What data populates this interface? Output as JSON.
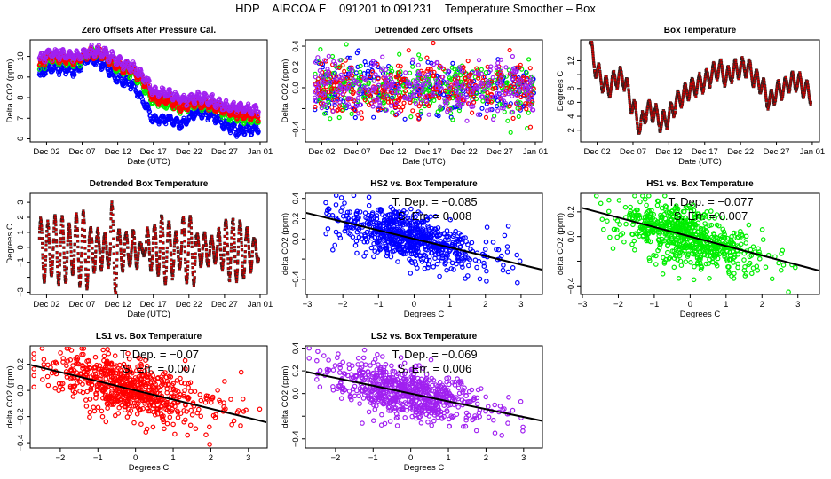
{
  "title": "HDP    AIRCOA E    091201 to 091231    Temperature Smoother – Box",
  "colors": {
    "HS2": "#0000ff",
    "HS1": "#00ee00",
    "LS1": "#ff0000",
    "LS2": "#a020f0",
    "box_temp_fill": "#cc0000",
    "box_temp_edge": "#222222",
    "fit_line": "#000000"
  },
  "chart_data": [
    {
      "id": "zero-offsets",
      "type": "scatter",
      "title": "Zero Offsets After Pressure Cal.",
      "xlabel": "Date (UTC)",
      "ylabel": "Delta CO2 (ppm)",
      "x_tick_labels": [
        "Dec 02",
        "Dec 07",
        "Dec 12",
        "Dec 17",
        "Dec 22",
        "Dec 27",
        "Jan 01"
      ],
      "x_tick_days": [
        1,
        6,
        11,
        16,
        21,
        26,
        31
      ],
      "xlim_days": [
        -1.3,
        32.0
      ],
      "y_ticks": [
        6,
        7,
        8,
        9,
        10
      ],
      "ylim": [
        5.85,
        10.8
      ],
      "series": [
        {
          "name": "HS2",
          "anchors_day": [
            0,
            1.5,
            3,
            5,
            7,
            9,
            11,
            13,
            15,
            16,
            18,
            20,
            22,
            24,
            26,
            28,
            30
          ],
          "values": [
            9.1,
            9.5,
            9.4,
            9.3,
            10.0,
            9.6,
            8.9,
            8.7,
            7.6,
            6.9,
            7.0,
            6.7,
            7.3,
            7.2,
            6.7,
            6.4,
            6.5
          ]
        },
        {
          "name": "HS1",
          "anchors_day": [
            0,
            1.5,
            3,
            5,
            7,
            9,
            11,
            13,
            15,
            16,
            18,
            20,
            22,
            24,
            26,
            28,
            30
          ],
          "values": [
            9.5,
            9.9,
            9.8,
            9.7,
            10.2,
            10.1,
            9.4,
            9.3,
            8.4,
            7.8,
            7.7,
            7.5,
            7.7,
            7.6,
            7.3,
            7.0,
            7.0
          ]
        },
        {
          "name": "LS1",
          "anchors_day": [
            0,
            1.5,
            3,
            5,
            7,
            9,
            11,
            13,
            15,
            16,
            18,
            20,
            22,
            24,
            26,
            28,
            30
          ],
          "values": [
            9.6,
            10.0,
            9.9,
            9.8,
            10.2,
            10.1,
            9.5,
            9.4,
            8.6,
            8.0,
            7.9,
            7.5,
            7.8,
            7.6,
            7.4,
            7.2,
            7.1
          ]
        },
        {
          "name": "LS2",
          "anchors_day": [
            0,
            1.5,
            3,
            5,
            7,
            9,
            11,
            13,
            15,
            16,
            18,
            20,
            22,
            24,
            26,
            28,
            30
          ],
          "values": [
            9.9,
            10.2,
            10.1,
            10.0,
            10.2,
            10.2,
            9.8,
            9.5,
            8.9,
            8.3,
            8.2,
            7.9,
            8.0,
            7.9,
            7.6,
            7.5,
            7.4
          ]
        }
      ]
    },
    {
      "id": "detrended-zero-offsets",
      "type": "scatter",
      "title": "Detrended Zero Offsets",
      "xlabel": "Date (UTC)",
      "ylabel": "Delta CO2 (ppm)",
      "x_tick_labels": [
        "Dec 02",
        "Dec 07",
        "Dec 12",
        "Dec 17",
        "Dec 22",
        "Dec 27",
        "Jan 01"
      ],
      "x_tick_days": [
        1,
        6,
        11,
        16,
        21,
        26,
        31
      ],
      "xlim_days": [
        -1.3,
        32.0
      ],
      "y_ticks": [
        -0.4,
        -0.2,
        0.0,
        0.2,
        0.4
      ],
      "y_tick_labels": [
        "−0.4",
        "",
        "0.0",
        "0.2",
        "0.4"
      ],
      "ylim": [
        -0.52,
        0.46
      ],
      "series_names": [
        "HS2",
        "HS1",
        "LS1",
        "LS2"
      ],
      "spread_sd": 0.13,
      "points_per_series": 300
    },
    {
      "id": "box-temperature",
      "type": "line",
      "title": "Box Temperature",
      "xlabel": "Date (UTC)",
      "ylabel": "Degrees C",
      "x_tick_labels": [
        "Dec 02",
        "Dec 07",
        "Dec 12",
        "Dec 17",
        "Dec 22",
        "Dec 27",
        "Jan 01"
      ],
      "x_tick_days": [
        1,
        6,
        11,
        16,
        21,
        26,
        31
      ],
      "xlim_days": [
        -1.3,
        32.0
      ],
      "y_ticks": [
        2,
        4,
        6,
        8,
        10,
        12
      ],
      "y_tick_labels": [
        "2",
        "4",
        "6",
        "8",
        "",
        "12"
      ],
      "ylim": [
        0.3,
        15.0
      ],
      "anchors_day": [
        0,
        0.5,
        1,
        1.5,
        2,
        2.5,
        3,
        3.5,
        4,
        4.5,
        5,
        5.5,
        6,
        6.5,
        7,
        7.5,
        8,
        9,
        10,
        11,
        12,
        13,
        14,
        15,
        16,
        17,
        18,
        19,
        20,
        21,
        22,
        23,
        24,
        25,
        26,
        27,
        28,
        29,
        30,
        30.8
      ],
      "values": [
        14.5,
        12.0,
        10.5,
        9.5,
        8.5,
        8.0,
        8.5,
        9.5,
        9.5,
        9.5,
        9.0,
        6.5,
        5.5,
        4.0,
        2.0,
        4.0,
        5.0,
        4.5,
        3.0,
        4.0,
        6.0,
        7.0,
        8.0,
        8.5,
        9.0,
        10.0,
        11.0,
        9.5,
        10.5,
        11.0,
        11.0,
        9.5,
        8.5,
        6.0,
        7.5,
        8.0,
        9.0,
        9.0,
        8.0,
        7.0
      ],
      "diurnal_amplitude": 1.6
    },
    {
      "id": "detrended-box-temperature",
      "type": "line",
      "title": "Detrended Box Temperature",
      "xlabel": "Date (UTC)",
      "ylabel": "Degrees C",
      "x_tick_labels": [
        "Dec 02",
        "Dec 07",
        "Dec 12",
        "Dec 17",
        "Dec 22",
        "Dec 27",
        "Jan 01"
      ],
      "x_tick_days": [
        1,
        6,
        11,
        16,
        21,
        26,
        31
      ],
      "xlim_days": [
        -1.3,
        32.0
      ],
      "y_ticks": [
        -3,
        -2,
        -1,
        0,
        1,
        2,
        3
      ],
      "y_tick_labels": [
        "−3",
        "",
        "−1",
        "0",
        "1",
        "2",
        "3"
      ],
      "ylim": [
        -3.15,
        3.6
      ],
      "daily_amplitude_days": [
        0,
        1,
        2,
        3,
        4,
        5,
        6,
        7,
        8,
        9,
        10,
        11,
        12,
        13,
        14,
        15,
        16,
        17,
        18,
        19,
        20,
        21,
        22,
        23,
        24,
        25,
        26,
        27,
        28,
        29,
        30
      ],
      "daily_amplitude": [
        2.3,
        1.9,
        2.5,
        2.4,
        1.8,
        2.6,
        2.8,
        1.6,
        1.4,
        1.2,
        3.4,
        1.5,
        1.2,
        1.3,
        0.4,
        1.5,
        1.8,
        2.5,
        2.0,
        1.3,
        2.4,
        2.5,
        1.1,
        1.2,
        0.9,
        1.4,
        2.2,
        2.2,
        2.1,
        1.6,
        0.8
      ]
    },
    {
      "id": "hs2-vs-box",
      "type": "scatter",
      "title": "HS2 vs. Box Temperature",
      "series_name": "HS2",
      "xlabel": "Degrees C",
      "ylabel": "delta CO2 (ppm)",
      "x_ticks": [
        -3,
        -2,
        -1,
        0,
        1,
        2,
        3
      ],
      "x_tick_labels": [
        "−3",
        "−2",
        "−1",
        "0",
        "1",
        "2",
        "3"
      ],
      "xlim": [
        -3.05,
        3.6
      ],
      "y_ticks": [
        -0.4,
        -0.2,
        0.0,
        0.2,
        0.4
      ],
      "y_tick_labels": [
        "−0.4",
        "",
        "0.0",
        "0.2",
        "0.4"
      ],
      "ylim": [
        -0.55,
        0.45
      ],
      "fit": {
        "slope": -0.085,
        "intercept": 0.0
      },
      "annotation": {
        "t_dep_label": "T. Dep.  =  −0.085",
        "s_err_label": "S. Err.  =  0.008"
      },
      "t_dep": -0.085,
      "s_err": 0.008,
      "n_points": 700,
      "residual_sd": 0.12
    },
    {
      "id": "hs1-vs-box",
      "type": "scatter",
      "title": "HS1 vs. Box Temperature",
      "series_name": "HS1",
      "xlabel": "Degrees C",
      "ylabel": "delta CO2 (ppm)",
      "x_ticks": [
        -3,
        -2,
        -1,
        0,
        1,
        2,
        3
      ],
      "x_tick_labels": [
        "−3",
        "−2",
        "−1",
        "0",
        "1",
        "2",
        "3"
      ],
      "xlim": [
        -3.05,
        3.6
      ],
      "y_ticks": [
        -0.4,
        -0.2,
        0.0,
        0.2
      ],
      "y_tick_labels": [
        "−0.4",
        "",
        "0.0",
        "0.2"
      ],
      "ylim": [
        -0.47,
        0.35
      ],
      "fit": {
        "slope": -0.077,
        "intercept": 0.0
      },
      "annotation": {
        "t_dep_label": "T. Dep.  =  −0.077",
        "s_err_label": "S. Err.  =  0.007"
      },
      "t_dep": -0.077,
      "s_err": 0.007,
      "n_points": 700,
      "residual_sd": 0.11
    },
    {
      "id": "ls1-vs-box",
      "type": "scatter",
      "title": "LS1 vs. Box Temperature",
      "series_name": "LS1",
      "xlabel": "Degrees C",
      "ylabel": "delta CO2 (ppm)",
      "x_ticks": [
        -2,
        -1,
        0,
        1,
        2,
        3
      ],
      "x_tick_labels": [
        "−2",
        "−1",
        "0",
        "1",
        "2",
        "3"
      ],
      "xlim": [
        -2.8,
        3.5
      ],
      "y_ticks": [
        -0.4,
        -0.2,
        0.0,
        0.2
      ],
      "y_tick_labels": [
        "−0.4",
        "−0.2",
        "0.0",
        "0.2"
      ],
      "ylim": [
        -0.44,
        0.34
      ],
      "fit": {
        "slope": -0.07,
        "intercept": 0.0
      },
      "annotation": {
        "t_dep_label": "T. Dep.  =  −0.07",
        "s_err_label": "S. Err.  =  0.007"
      },
      "t_dep": -0.07,
      "s_err": 0.007,
      "n_points": 700,
      "residual_sd": 0.11
    },
    {
      "id": "ls2-vs-box",
      "type": "scatter",
      "title": "LS2 vs. Box Temperature",
      "series_name": "LS2",
      "xlabel": "Degrees C",
      "ylabel": "delta CO2 (ppm)",
      "x_ticks": [
        -2,
        -1,
        0,
        1,
        2,
        3
      ],
      "x_tick_labels": [
        "−2",
        "−1",
        "0",
        "1",
        "2",
        "3"
      ],
      "xlim": [
        -2.8,
        3.5
      ],
      "y_ticks": [
        -0.4,
        -0.2,
        0.0,
        0.2,
        0.4
      ],
      "y_tick_labels": [
        "−0.4",
        "",
        "0.0",
        "0.2",
        "0.4"
      ],
      "ylim": [
        -0.48,
        0.42
      ],
      "fit": {
        "slope": -0.069,
        "intercept": 0.0
      },
      "annotation": {
        "t_dep_label": "T. Dep.  =  −0.069",
        "s_err_label": "S. Err.  =  0.006"
      },
      "t_dep": -0.069,
      "s_err": 0.006,
      "n_points": 700,
      "residual_sd": 0.11
    }
  ]
}
